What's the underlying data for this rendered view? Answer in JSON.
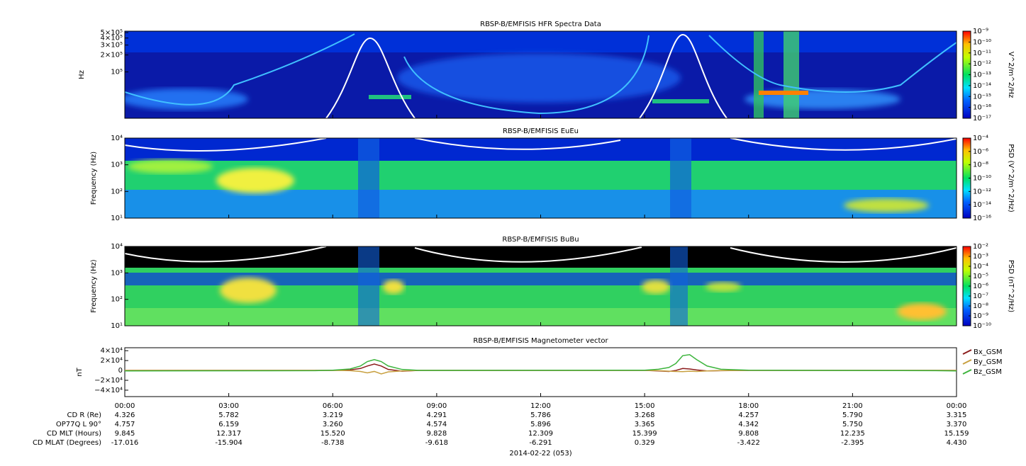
{
  "chart_data": [
    {
      "type": "spectrogram",
      "title": "RBSP-B/EMFISIS  HFR Spectra Data",
      "ylabel": "Hz",
      "log_y": true,
      "ylim": [
        15000,
        530000
      ],
      "yticks": [
        {
          "value": 100000,
          "label": "10⁵"
        },
        {
          "value": 200000,
          "label": "2×10⁵"
        },
        {
          "value": 300000,
          "label": "3×10⁵"
        },
        {
          "value": 400000,
          "label": "4×10⁵"
        },
        {
          "value": 500000,
          "label": "5×10⁵"
        }
      ],
      "colorbar_label": "V^2/m^2/Hz",
      "clim": [
        1e-17,
        1e-09
      ],
      "cticks": [
        {
          "value": 1e-17,
          "label": "10⁻¹⁷"
        },
        {
          "value": 1e-16,
          "label": "10⁻¹⁶"
        },
        {
          "value": 1e-15,
          "label": "10⁻¹⁵"
        },
        {
          "value": 1e-14,
          "label": "10⁻¹⁴"
        },
        {
          "value": 1e-13,
          "label": "10⁻¹³"
        },
        {
          "value": 1e-12,
          "label": "10⁻¹²"
        },
        {
          "value": 1e-11,
          "label": "10⁻¹¹"
        },
        {
          "value": 1e-10,
          "label": "10⁻¹⁰"
        },
        {
          "value": 1e-09,
          "label": "10⁻⁹"
        }
      ]
    },
    {
      "type": "spectrogram",
      "title": "RBSP-B/EMFISIS  EuEu",
      "ylabel": "Frequency (Hz)",
      "log_y": true,
      "ylim": [
        10,
        10000
      ],
      "yticks": [
        {
          "value": 10,
          "label": "10¹"
        },
        {
          "value": 100,
          "label": "10²"
        },
        {
          "value": 1000,
          "label": "10³"
        },
        {
          "value": 10000,
          "label": "10⁴"
        }
      ],
      "colorbar_label": "PSD (V^2/m^2/Hz)",
      "clim": [
        1e-16,
        0.0001
      ],
      "cticks": [
        {
          "value": 1e-16,
          "label": "10⁻¹⁶"
        },
        {
          "value": 1e-14,
          "label": "10⁻¹⁴"
        },
        {
          "value": 1e-12,
          "label": "10⁻¹²"
        },
        {
          "value": 1e-10,
          "label": "10⁻¹⁰"
        },
        {
          "value": 1e-08,
          "label": "10⁻⁸"
        },
        {
          "value": 1e-06,
          "label": "10⁻⁶"
        },
        {
          "value": 0.0001,
          "label": "10⁻⁴"
        }
      ]
    },
    {
      "type": "spectrogram",
      "title": "RBSP-B/EMFISIS  BuBu",
      "ylabel": "Frequency (Hz)",
      "log_y": true,
      "ylim": [
        10,
        10000
      ],
      "yticks": [
        {
          "value": 10,
          "label": "10¹"
        },
        {
          "value": 100,
          "label": "10²"
        },
        {
          "value": 1000,
          "label": "10³"
        },
        {
          "value": 10000,
          "label": "10⁴"
        }
      ],
      "colorbar_label": "PSD (nT^2/Hz)",
      "clim": [
        1e-10,
        0.01
      ],
      "cticks": [
        {
          "value": 1e-10,
          "label": "10⁻¹⁰"
        },
        {
          "value": 1e-09,
          "label": "10⁻⁹"
        },
        {
          "value": 1e-08,
          "label": "10⁻⁸"
        },
        {
          "value": 1e-07,
          "label": "10⁻⁷"
        },
        {
          "value": 1e-06,
          "label": "10⁻⁶"
        },
        {
          "value": 1e-05,
          "label": "10⁻⁵"
        },
        {
          "value": 0.0001,
          "label": "10⁻⁴"
        },
        {
          "value": 0.001,
          "label": "10⁻³"
        },
        {
          "value": 0.01,
          "label": "10⁻²"
        }
      ]
    },
    {
      "type": "line",
      "title": "RBSP-B/EMFISIS  Magnetometer vector",
      "ylabel": "nT",
      "xlim": [
        0,
        24
      ],
      "xticks": [
        {
          "value": 0,
          "label": "00:00"
        },
        {
          "value": 3,
          "label": "03:00"
        },
        {
          "value": 6,
          "label": "06:00"
        },
        {
          "value": 9,
          "label": "09:00"
        },
        {
          "value": 12,
          "label": "12:00"
        },
        {
          "value": 15,
          "label": "15:00"
        },
        {
          "value": 18,
          "label": "18:00"
        },
        {
          "value": 21,
          "label": "21:00"
        },
        {
          "value": 24,
          "label": "00:00"
        }
      ],
      "ylim": [
        -53000,
        46000
      ],
      "yticks": [
        {
          "value": -40000,
          "label": "−4×10⁴"
        },
        {
          "value": -20000,
          "label": "−2×10⁴"
        },
        0,
        {
          "value": 20000,
          "label": "2×10⁴"
        },
        {
          "value": 40000,
          "label": "4×10⁴"
        }
      ],
      "x": [
        0,
        5.5,
        6.0,
        6.5,
        6.8,
        7.0,
        7.2,
        7.4,
        7.6,
        8.0,
        8.5,
        15.0,
        15.4,
        15.7,
        15.9,
        16.1,
        16.3,
        16.5,
        16.8,
        17.2,
        18,
        23.4,
        24
      ],
      "series": [
        {
          "name": "Bx_GSM",
          "color": "#8b1a1a",
          "values": [
            0,
            0,
            0,
            1000,
            4000,
            9000,
            13000,
            9000,
            2000,
            -1500,
            0,
            0,
            -1000,
            -2000,
            0,
            4000,
            3000,
            1000,
            -1000,
            -500,
            0,
            0,
            0
          ]
        },
        {
          "name": "By_GSM",
          "color": "#c8a040",
          "values": [
            0,
            0,
            0,
            -500,
            -2000,
            -5000,
            -2000,
            -7000,
            -3000,
            -1000,
            0,
            0,
            -500,
            -1500,
            -2000,
            -2500,
            -1500,
            -2000,
            -1000,
            -300,
            0,
            0,
            0
          ]
        },
        {
          "name": "Bz_GSM",
          "color": "#3cb43c",
          "values": [
            -1000,
            -500,
            500,
            3000,
            9000,
            18000,
            22000,
            18000,
            9000,
            2000,
            0,
            500,
            2500,
            6000,
            14000,
            30000,
            32000,
            22000,
            9000,
            2500,
            500,
            -500,
            -1000
          ]
        }
      ],
      "ephemeris": [
        {
          "label": "CD R (Re)",
          "values": [
            "4.326",
            "5.782",
            "3.219",
            "4.291",
            "5.786",
            "3.268",
            "4.257",
            "5.790",
            "3.315"
          ]
        },
        {
          "label": "OP77Q L 90°",
          "values": [
            "4.757",
            "6.159",
            "3.260",
            "4.574",
            "5.896",
            "3.365",
            "4.342",
            "5.750",
            "3.370"
          ]
        },
        {
          "label": "CD MLT (Hours)",
          "values": [
            "9.845",
            "12.317",
            "15.520",
            "9.828",
            "12.309",
            "15.399",
            "9.808",
            "12.235",
            "15.159"
          ]
        },
        {
          "label": "CD MLAT (Degrees)",
          "values": [
            "-17.016",
            "-15.904",
            "-8.738",
            "-9.618",
            "-6.291",
            "0.329",
            "-3.422",
            "-2.395",
            "4.430"
          ]
        }
      ],
      "date": "2014-02-22 (053)"
    }
  ]
}
